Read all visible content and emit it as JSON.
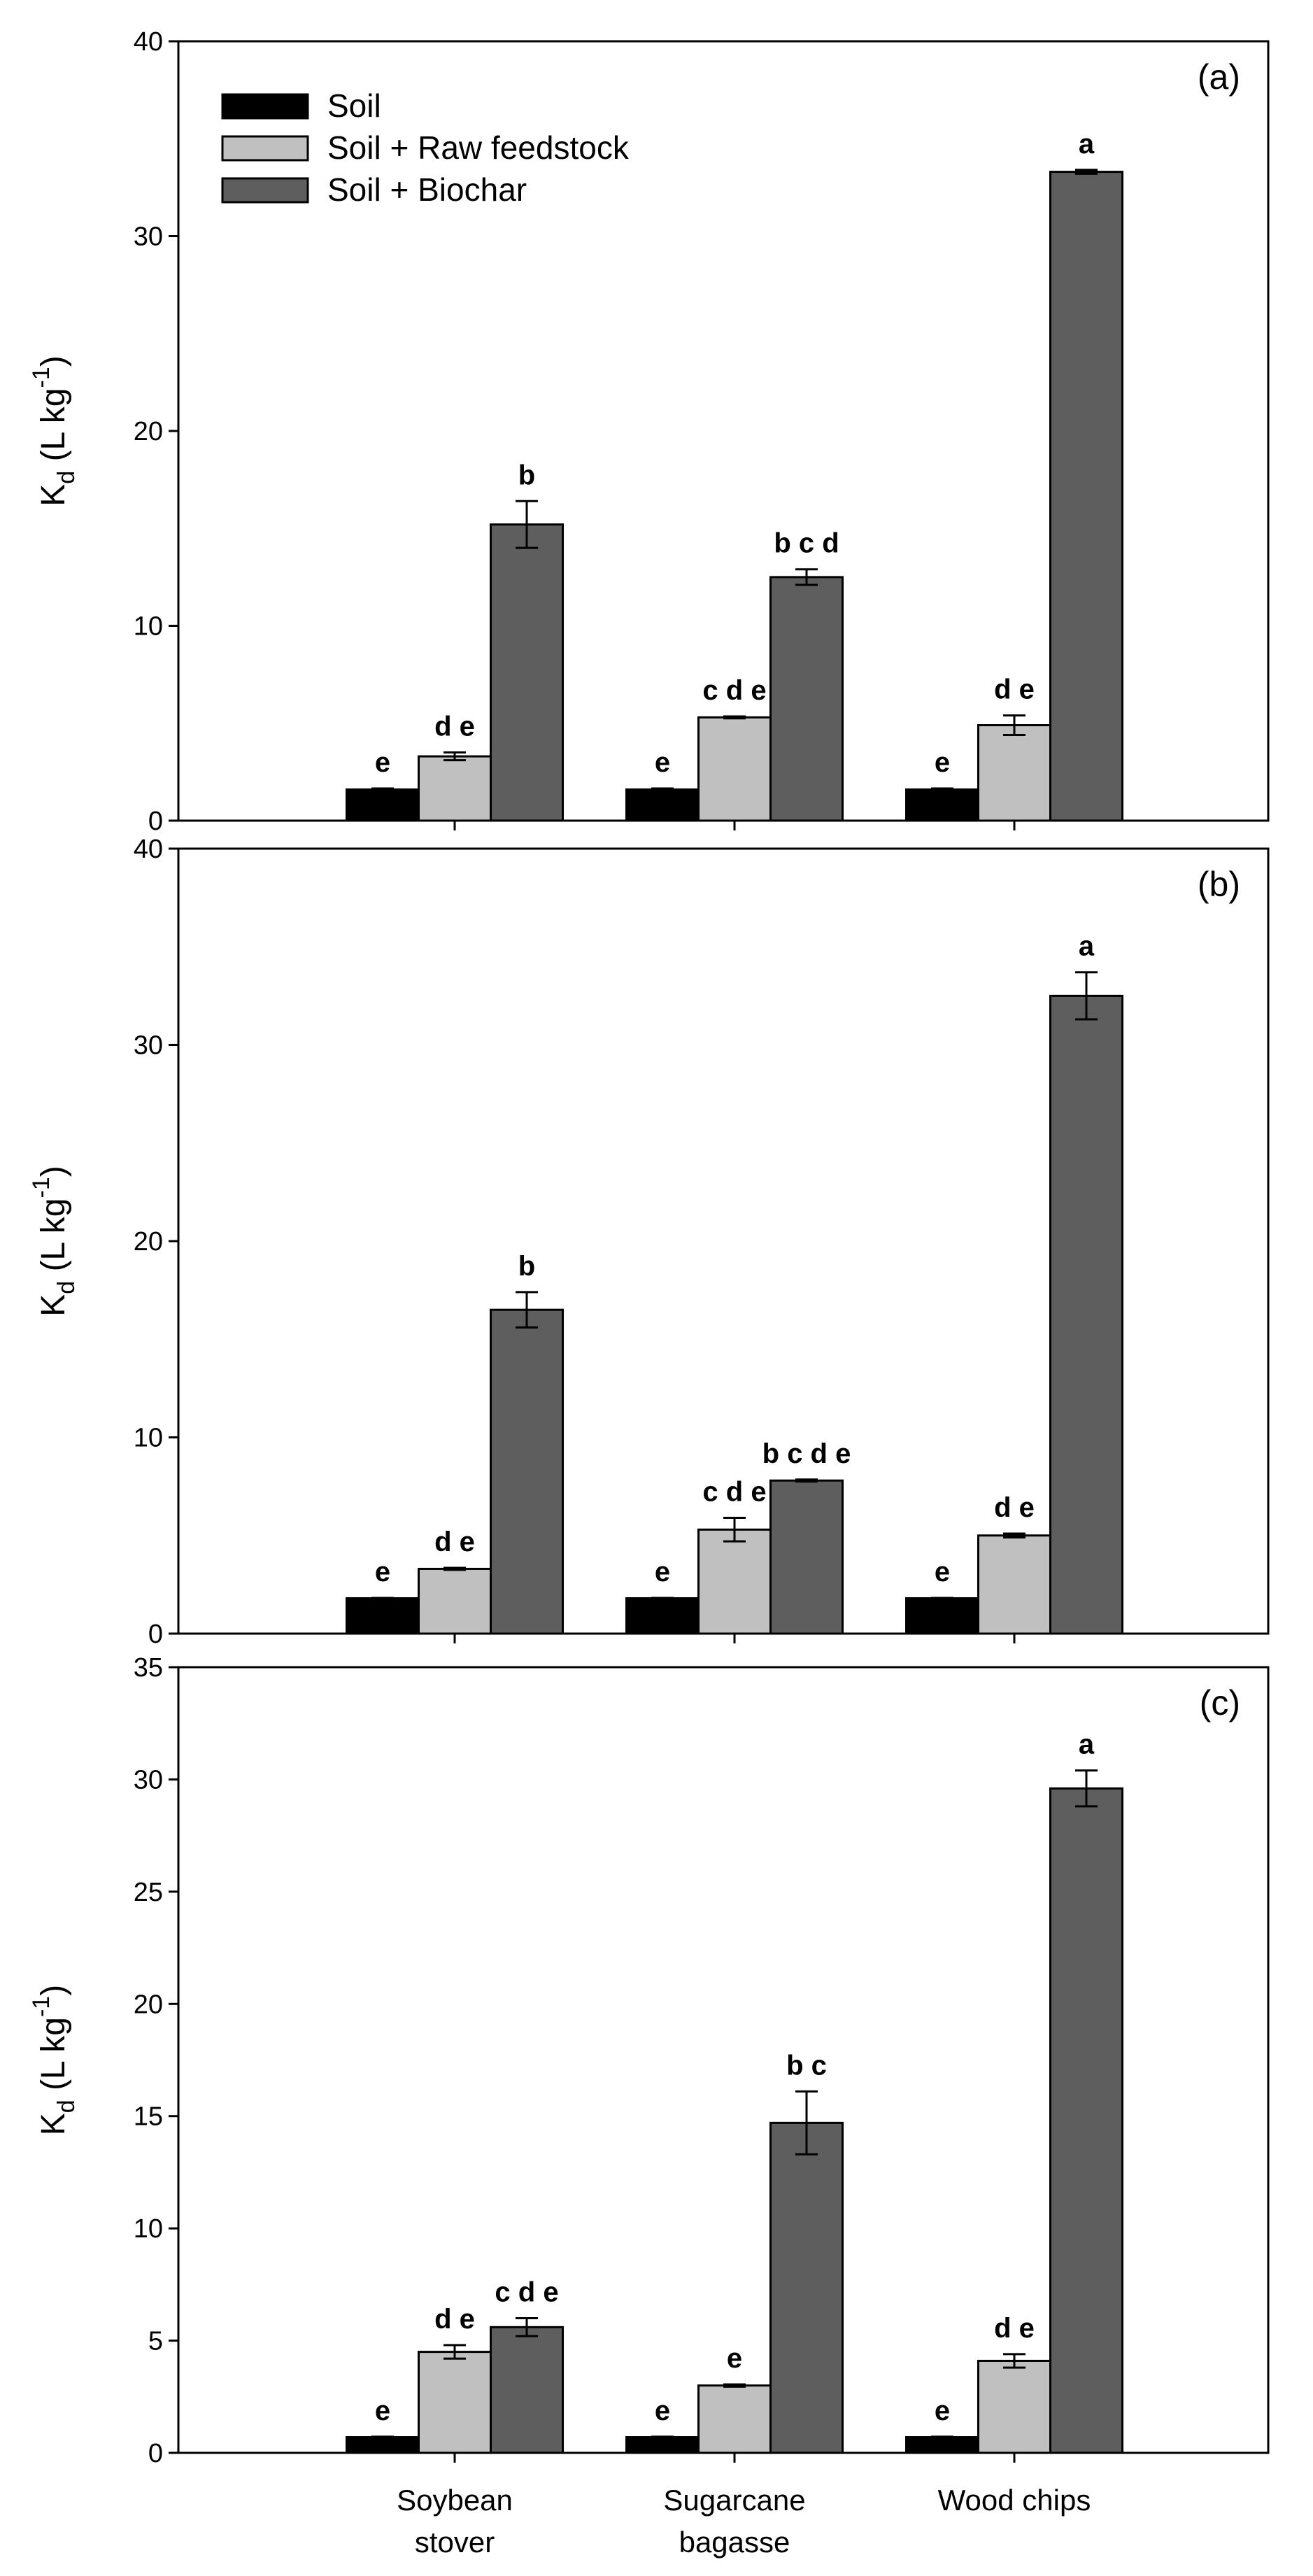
{
  "chart_data": {
    "type": "bar",
    "categories": [
      "Soybean stover",
      "Sugarcane bagasse",
      "Wood chips"
    ],
    "category_lines": [
      [
        "Soybean",
        "stover"
      ],
      [
        "Sugarcane",
        "bagasse"
      ],
      [
        "Wood chips"
      ]
    ],
    "legend": [
      "Soil",
      "Soil + Raw feedstock",
      "Soil + Biochar"
    ],
    "legend_position": "top-left",
    "series_colors": [
      "#000000",
      "#c0c0c0",
      "#5e5e5e"
    ],
    "ylabel": {
      "main": "K",
      "sub": "d",
      "unit": " (L kg",
      "sup": "-1",
      "close": ")"
    },
    "panels": [
      {
        "label": "(a)",
        "ylim": [
          0,
          40
        ],
        "yticks": [
          0,
          10,
          20,
          30,
          40
        ],
        "series": [
          {
            "name": "Soil",
            "values": [
              1.6,
              1.6,
              1.6
            ],
            "errors": [
              0.05,
              0.05,
              0.05
            ],
            "letters": [
              "e",
              "e",
              "e"
            ]
          },
          {
            "name": "Soil + Raw feedstock",
            "values": [
              3.3,
              5.3,
              4.9
            ],
            "errors": [
              0.2,
              0.05,
              0.5
            ],
            "letters": [
              "d e",
              "c d e",
              "d e"
            ]
          },
          {
            "name": "Soil + Biochar",
            "values": [
              15.2,
              12.5,
              33.3
            ],
            "errors": [
              1.2,
              0.4,
              0.1
            ],
            "letters": [
              "b",
              "b c d",
              "a"
            ]
          }
        ]
      },
      {
        "label": "(b)",
        "ylim": [
          0,
          40
        ],
        "yticks": [
          0,
          10,
          20,
          30,
          40
        ],
        "series": [
          {
            "name": "Soil",
            "values": [
              1.8,
              1.8,
              1.8
            ],
            "errors": [
              0.02,
              0.02,
              0.02
            ],
            "letters": [
              "e",
              "e",
              "e"
            ]
          },
          {
            "name": "Soil + Raw feedstock",
            "values": [
              3.3,
              5.3,
              5.0
            ],
            "errors": [
              0.05,
              0.6,
              0.1
            ],
            "letters": [
              "d e",
              "c d e",
              "d e"
            ]
          },
          {
            "name": "Soil + Biochar",
            "values": [
              16.5,
              7.8,
              32.5
            ],
            "errors": [
              0.9,
              0.05,
              1.2
            ],
            "letters": [
              "b",
              "b c d e",
              "a"
            ]
          }
        ]
      },
      {
        "label": "(c)",
        "ylim": [
          0,
          35
        ],
        "yticks": [
          0,
          5,
          10,
          15,
          20,
          25,
          30,
          35
        ],
        "series": [
          {
            "name": "Soil",
            "values": [
              0.7,
              0.7,
              0.7
            ],
            "errors": [
              0.02,
              0.02,
              0.02
            ],
            "letters": [
              "e",
              "e",
              "e"
            ]
          },
          {
            "name": "Soil + Raw feedstock",
            "values": [
              4.5,
              3.0,
              4.1
            ],
            "errors": [
              0.3,
              0.05,
              0.3
            ],
            "letters": [
              "d e",
              "e",
              "d e"
            ]
          },
          {
            "name": "Soil + Biochar",
            "values": [
              5.6,
              14.7,
              29.6
            ],
            "errors": [
              0.4,
              1.4,
              0.8
            ],
            "letters": [
              "c d e",
              "b c",
              "a"
            ]
          }
        ]
      }
    ]
  }
}
